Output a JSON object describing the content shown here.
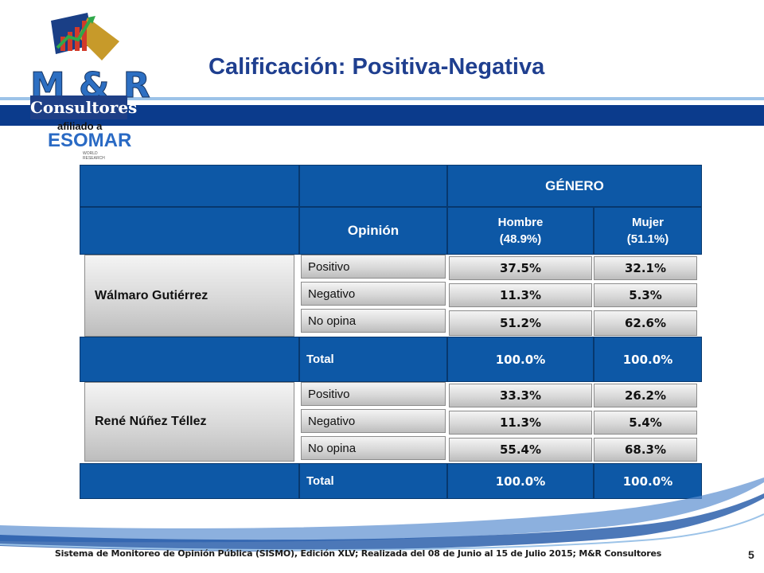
{
  "title": "Calificación: Positiva-Negativa",
  "logo": {
    "brand": "M & R",
    "consultores": "Consultores",
    "afiliado": "afiliado a",
    "esomar": "ESOMAR",
    "world_research": "WORLD RESEARCH"
  },
  "table": {
    "header_group": "GÉNERO",
    "opinion_header": "Opinión",
    "hombre_label": "Hombre",
    "hombre_pct": "(48.9%)",
    "mujer_label": "Mujer",
    "mujer_pct": "(51.1%)",
    "groups": [
      {
        "name": "Wálmaro Gutiérrez",
        "rows": [
          {
            "opinion": "Positivo",
            "hombre": "37.5%",
            "mujer": "32.1%"
          },
          {
            "opinion": "Negativo",
            "hombre": "11.3%",
            "mujer": "5.3%"
          },
          {
            "opinion": "No opina",
            "hombre": "51.2%",
            "mujer": "62.6%"
          }
        ],
        "total": {
          "label": "Total",
          "hombre": "100.0%",
          "mujer": "100.0%"
        }
      },
      {
        "name": "René Núñez Téllez",
        "rows": [
          {
            "opinion": "Positivo",
            "hombre": "33.3%",
            "mujer": "26.2%"
          },
          {
            "opinion": "Negativo",
            "hombre": "11.3%",
            "mujer": "5.4%"
          },
          {
            "opinion": "No opina",
            "hombre": "55.4%",
            "mujer": "68.3%"
          }
        ],
        "total": {
          "label": "Total",
          "hombre": "100.0%",
          "mujer": "100.0%"
        }
      }
    ]
  },
  "footer": "Sistema de Monitoreo de Opinión Pública (SISMO), Edición XLV; Realizada del 08 de Junio al 15 de Julio 2015; M&R Consultores",
  "page_number": "5",
  "colors": {
    "title": "#1f3f8f",
    "header_blue": "#0d58a6",
    "band_dark": "#0b3b8c"
  }
}
